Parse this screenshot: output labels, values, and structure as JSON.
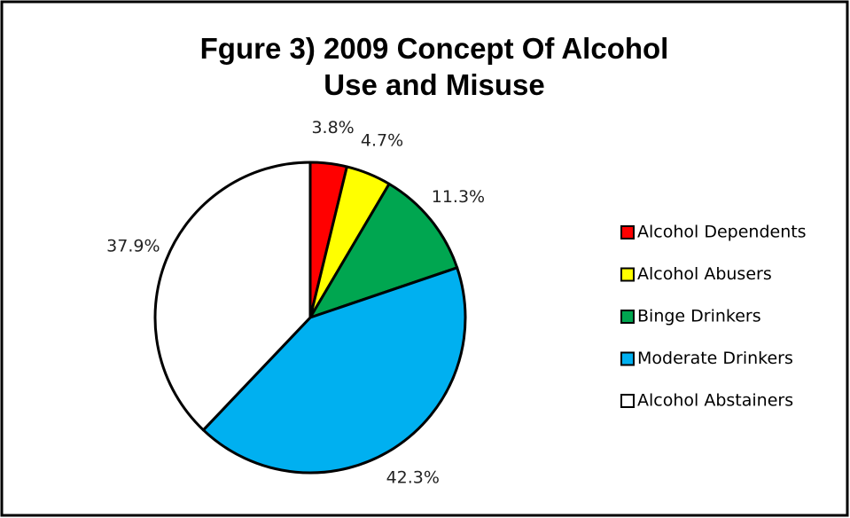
{
  "chart_data": {
    "type": "pie",
    "title": "Fgure 3) 2009 Concept Of Alcohol Use and Misuse",
    "categories": [
      "Alcohol Dependents",
      "Alcohol Abusers",
      "Binge Drinkers",
      "Moderate Drinkers",
      "Alcohol Abstainers"
    ],
    "values": [
      3.8,
      4.7,
      11.3,
      42.3,
      37.9
    ],
    "value_labels": [
      "3.8%",
      "4.7%",
      "11.3%",
      "42.3%",
      "37.9%"
    ],
    "colors": [
      "#ff0000",
      "#ffff00",
      "#00a650",
      "#00b0f0",
      "#ffffff"
    ],
    "legend": "right"
  }
}
